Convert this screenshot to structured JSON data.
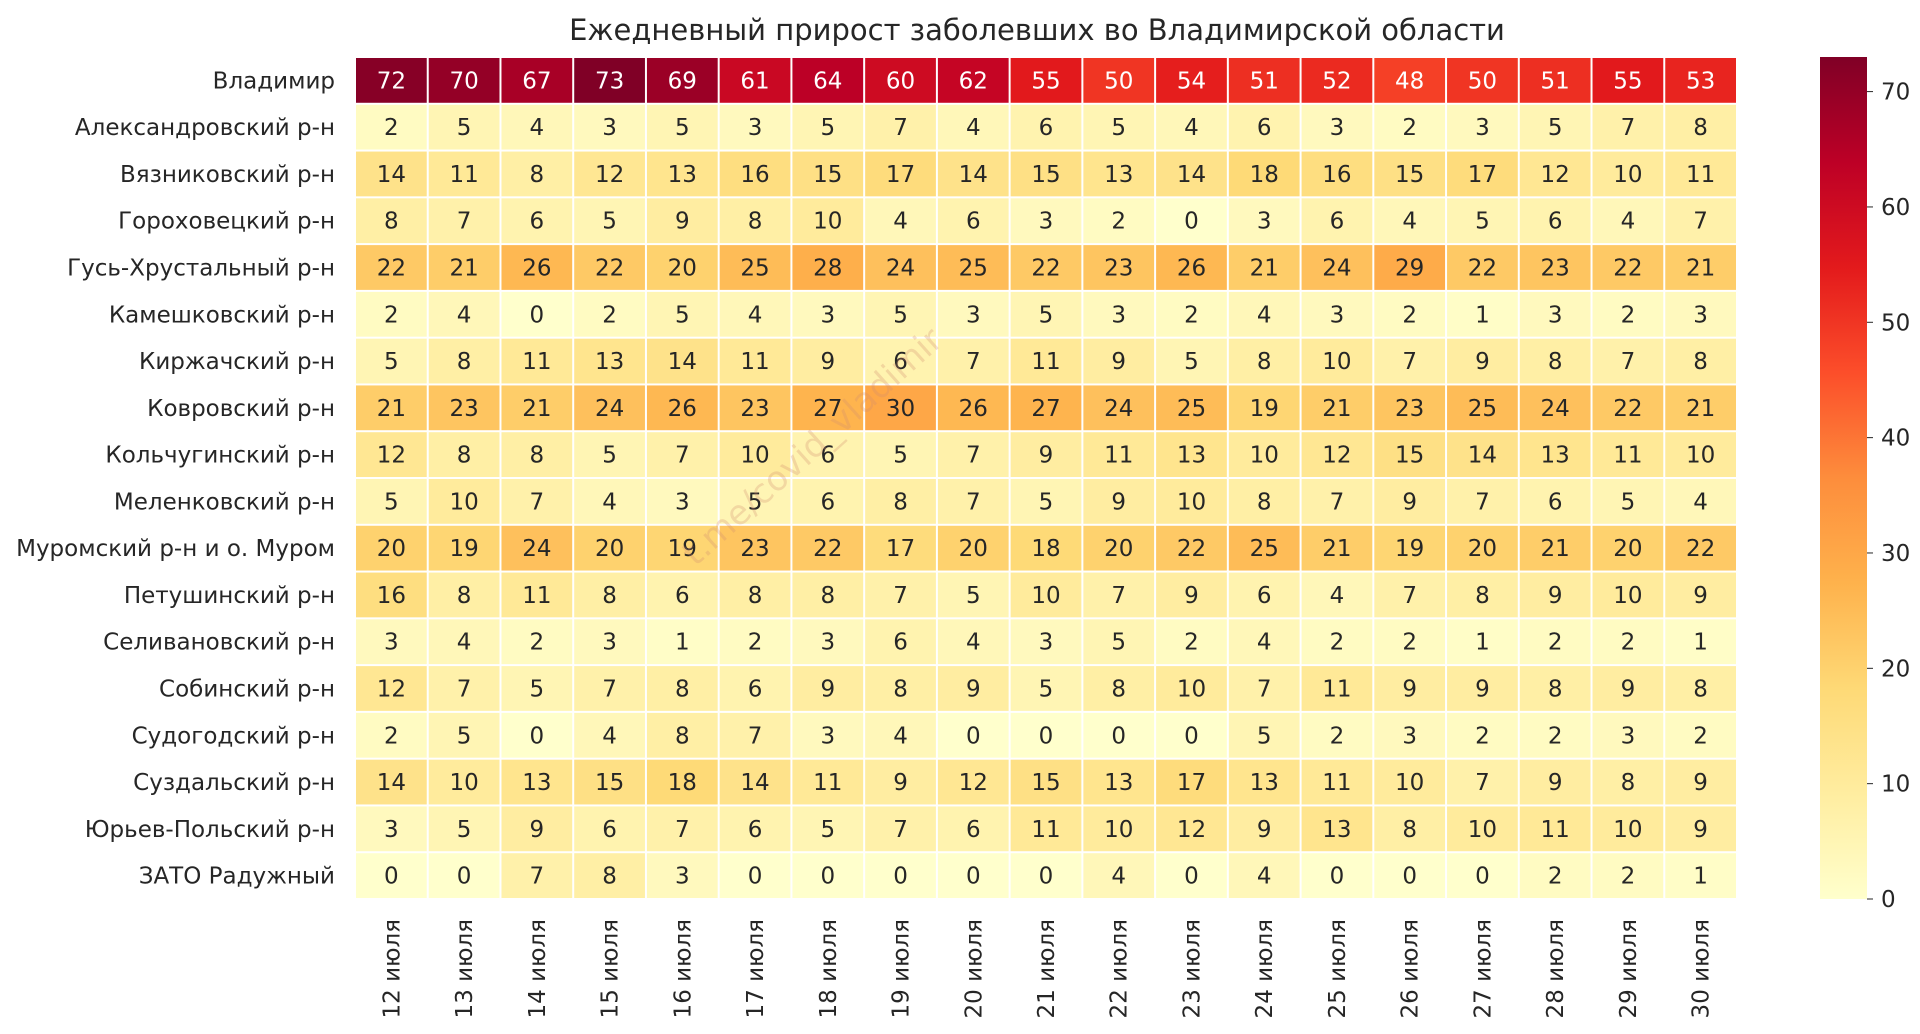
{
  "chart_data": {
    "type": "heatmap",
    "title": "Ежедневный прирост заболевших во Владимирской области",
    "watermark": "t.me/covid_vladimir",
    "xlabel": "",
    "ylabel": "",
    "columns": [
      "12 июля",
      "13 июля",
      "14 июля",
      "15 июля",
      "16 июля",
      "17 июля",
      "18 июля",
      "19 июля",
      "20 июля",
      "21 июля",
      "22 июля",
      "23 июля",
      "24 июля",
      "25 июля",
      "26 июля",
      "27 июля",
      "28 июля",
      "29 июля",
      "30 июля"
    ],
    "rows": [
      "Владимир",
      "Александровский р-н",
      "Вязниковский р-н",
      "Гороховецкий р-н",
      "Гусь-Хрустальный р-н",
      "Камешковский р-н",
      "Киржачский р-н",
      "Ковровский р-н",
      "Кольчугинский р-н",
      "Меленковский р-н",
      "Муромский р-н и о. Муром",
      "Петушинский р-н",
      "Селивановский р-н",
      "Собинский р-н",
      "Судогодский р-н",
      "Суздальский р-н",
      "Юрьев-Польский р-н",
      "ЗАТО Радужный"
    ],
    "values": [
      [
        72,
        70,
        67,
        73,
        69,
        61,
        64,
        60,
        62,
        55,
        50,
        54,
        51,
        52,
        48,
        50,
        51,
        55,
        53
      ],
      [
        2,
        5,
        4,
        3,
        5,
        3,
        5,
        7,
        4,
        6,
        5,
        4,
        6,
        3,
        2,
        3,
        5,
        7,
        8
      ],
      [
        14,
        11,
        8,
        12,
        13,
        16,
        15,
        17,
        14,
        15,
        13,
        14,
        18,
        16,
        15,
        17,
        12,
        10,
        11
      ],
      [
        8,
        7,
        6,
        5,
        9,
        8,
        10,
        4,
        6,
        3,
        2,
        0,
        3,
        6,
        4,
        5,
        6,
        4,
        7
      ],
      [
        22,
        21,
        26,
        22,
        20,
        25,
        28,
        24,
        25,
        22,
        23,
        26,
        21,
        24,
        29,
        22,
        23,
        22,
        21
      ],
      [
        2,
        4,
        0,
        2,
        5,
        4,
        3,
        5,
        3,
        5,
        3,
        2,
        4,
        3,
        2,
        1,
        3,
        2,
        3
      ],
      [
        5,
        8,
        11,
        13,
        14,
        11,
        9,
        6,
        7,
        11,
        9,
        5,
        8,
        10,
        7,
        9,
        8,
        7,
        8
      ],
      [
        21,
        23,
        21,
        24,
        26,
        23,
        27,
        30,
        26,
        27,
        24,
        25,
        19,
        21,
        23,
        25,
        24,
        22,
        21
      ],
      [
        12,
        8,
        8,
        5,
        7,
        10,
        6,
        5,
        7,
        9,
        11,
        13,
        10,
        12,
        15,
        14,
        13,
        11,
        10
      ],
      [
        5,
        10,
        7,
        4,
        3,
        5,
        6,
        8,
        7,
        5,
        9,
        10,
        8,
        7,
        9,
        7,
        6,
        5,
        4
      ],
      [
        20,
        19,
        24,
        20,
        19,
        23,
        22,
        17,
        20,
        18,
        20,
        22,
        25,
        21,
        19,
        20,
        21,
        20,
        22
      ],
      [
        16,
        8,
        11,
        8,
        6,
        8,
        8,
        7,
        5,
        10,
        7,
        9,
        6,
        4,
        7,
        8,
        9,
        10,
        9
      ],
      [
        3,
        4,
        2,
        3,
        1,
        2,
        3,
        6,
        4,
        3,
        5,
        2,
        4,
        2,
        2,
        1,
        2,
        2,
        1
      ],
      [
        12,
        7,
        5,
        7,
        8,
        6,
        9,
        8,
        9,
        5,
        8,
        10,
        7,
        11,
        9,
        9,
        8,
        9,
        8
      ],
      [
        2,
        5,
        0,
        4,
        8,
        7,
        3,
        4,
        0,
        0,
        0,
        0,
        5,
        2,
        3,
        2,
        2,
        3,
        2
      ],
      [
        14,
        10,
        13,
        15,
        18,
        14,
        11,
        9,
        12,
        15,
        13,
        17,
        13,
        11,
        10,
        7,
        9,
        8,
        9
      ],
      [
        3,
        5,
        9,
        6,
        7,
        6,
        5,
        7,
        6,
        11,
        10,
        12,
        9,
        13,
        8,
        10,
        11,
        10,
        9
      ],
      [
        0,
        0,
        7,
        8,
        3,
        0,
        0,
        0,
        0,
        0,
        4,
        0,
        4,
        0,
        0,
        0,
        2,
        2,
        1
      ]
    ],
    "colorbar": {
      "colormap": "YlOrRd",
      "vmin": 0,
      "vmax": 73,
      "ticks": [
        0,
        10,
        20,
        30,
        40,
        50,
        60,
        70
      ]
    },
    "grid": false,
    "legend": "colorbar-right"
  }
}
